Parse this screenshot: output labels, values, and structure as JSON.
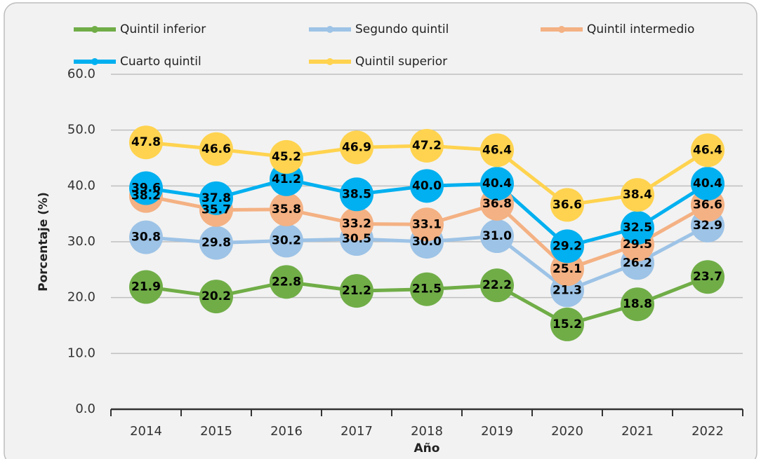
{
  "chart_data": {
    "type": "line",
    "x_label": "Año",
    "y_label": "Porcentaje (%)",
    "categories": [
      "2014",
      "2015",
      "2016",
      "2017",
      "2018",
      "2019",
      "2020",
      "2021",
      "2022"
    ],
    "ylim": [
      0,
      60
    ],
    "yticks": [
      {
        "value": 0,
        "label": "0.0"
      },
      {
        "value": 10,
        "label": "10.0"
      },
      {
        "value": 20,
        "label": "20.0"
      },
      {
        "value": 30,
        "label": "30.0"
      },
      {
        "value": 40,
        "label": "40.0"
      },
      {
        "value": 50,
        "label": "50.0"
      },
      {
        "value": 60,
        "label": "60.0"
      }
    ],
    "grid": true,
    "legend": "top",
    "series": [
      {
        "name": "Quintil inferior",
        "color": "#70ad47",
        "values": [
          21.9,
          20.2,
          22.8,
          21.2,
          21.5,
          22.2,
          15.2,
          18.8,
          23.7
        ],
        "value_labels": [
          "21.9",
          "20.2",
          "22.8",
          "21.2",
          "21.5",
          "22.2",
          "15.2",
          "18.8",
          "23.7"
        ]
      },
      {
        "name": "Segundo quintil",
        "color": "#9dc3e6",
        "values": [
          30.8,
          29.8,
          30.2,
          30.5,
          30.0,
          31.0,
          21.3,
          26.2,
          32.9
        ],
        "value_labels": [
          "30.8",
          "29.8",
          "30.2",
          "30.5",
          "30.0",
          "31.0",
          "21.3",
          "26.2",
          "32.9"
        ]
      },
      {
        "name": "Quintil intermedio",
        "color": "#f4b183",
        "values": [
          38.2,
          35.7,
          35.8,
          33.2,
          33.1,
          36.8,
          25.1,
          29.5,
          36.6
        ],
        "value_labels": [
          "38.2",
          "35.7",
          "35.8",
          "33.2",
          "33.1",
          "36.8",
          "25.1",
          "29.5",
          "36.6"
        ]
      },
      {
        "name": "Cuarto quintil",
        "color": "#00b0f0",
        "values": [
          39.6,
          37.8,
          41.2,
          38.5,
          40.0,
          40.4,
          29.2,
          32.5,
          40.4
        ],
        "value_labels": [
          "39.6",
          "37.8",
          "41.2",
          "38.5",
          "40.0",
          "40.4",
          "29.2",
          "32.5",
          "40.4"
        ]
      },
      {
        "name": "Quintil superior",
        "color": "#ffd34f",
        "values": [
          47.8,
          46.6,
          45.2,
          46.9,
          47.2,
          46.4,
          36.6,
          38.4,
          46.4
        ],
        "value_labels": [
          "47.8",
          "46.6",
          "45.2",
          "46.9",
          "47.2",
          "46.4",
          "36.6",
          "38.4",
          "46.4"
        ]
      }
    ]
  }
}
